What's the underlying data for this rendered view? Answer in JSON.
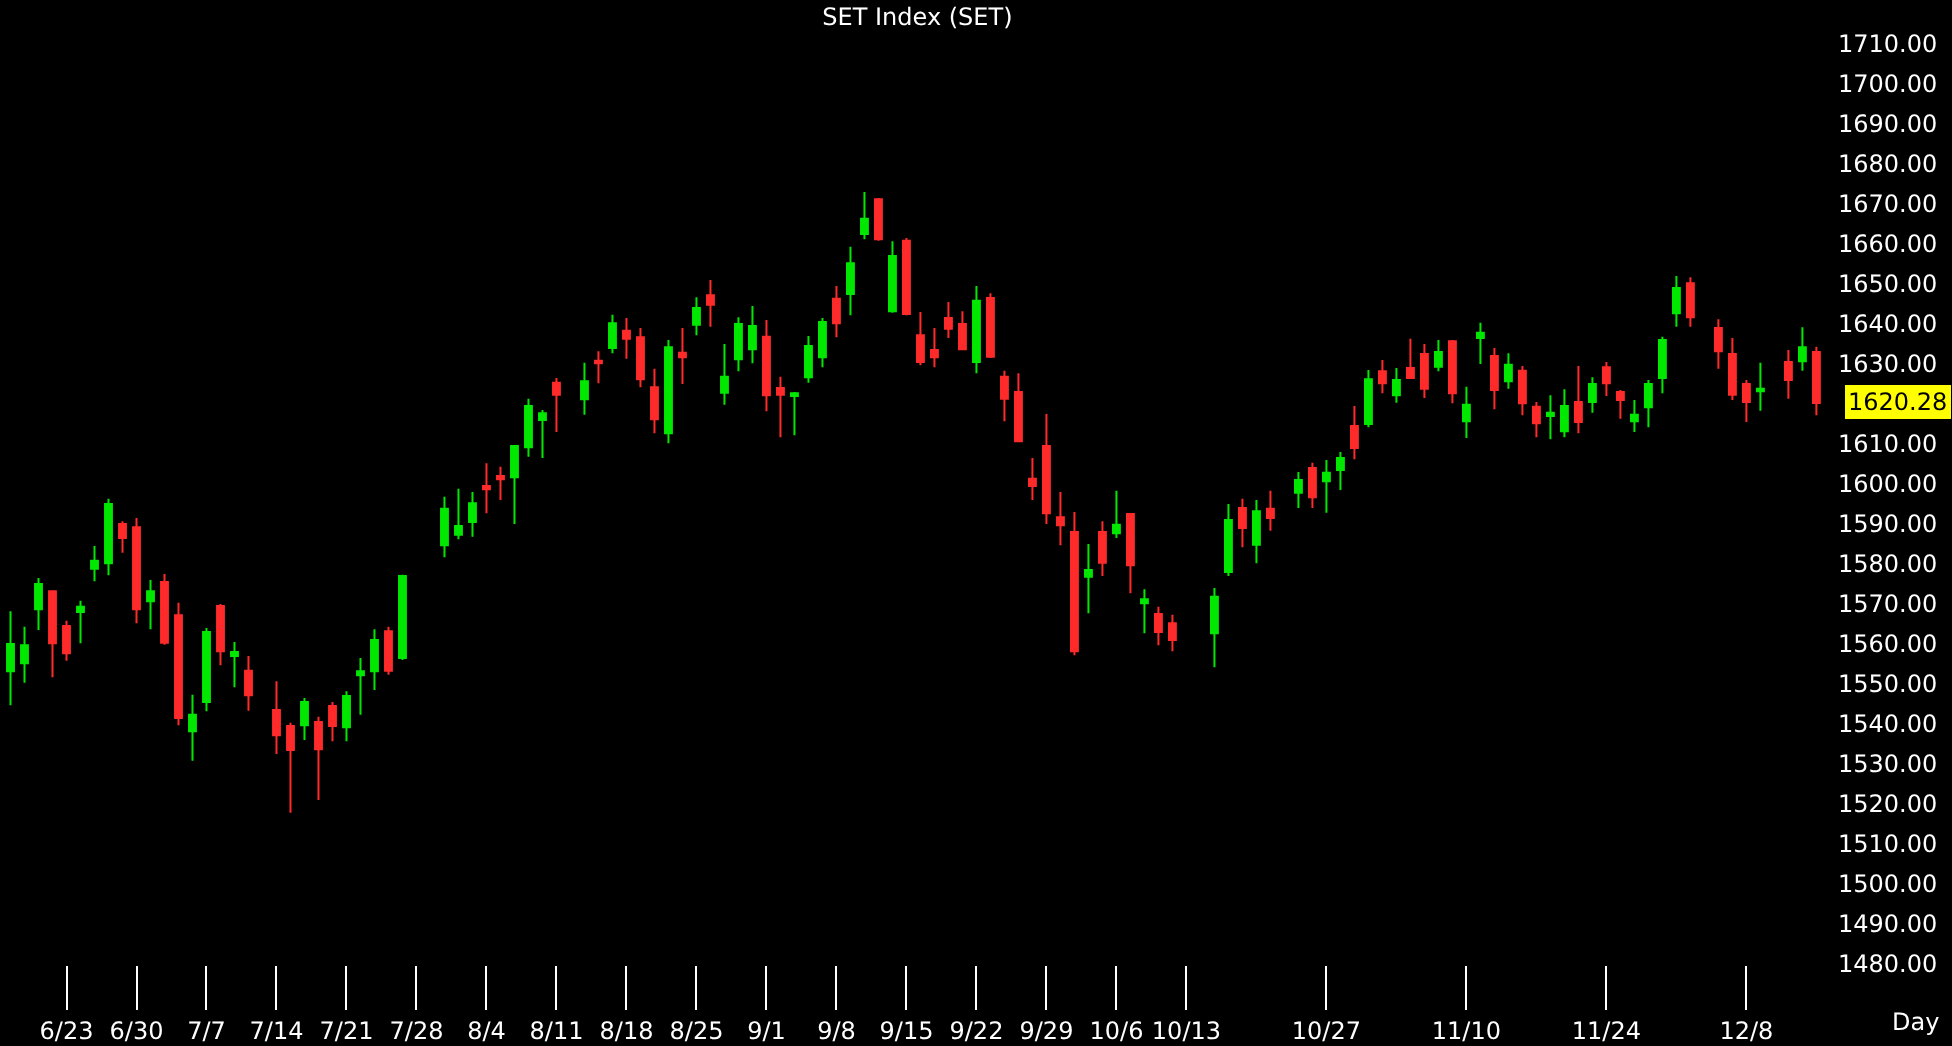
{
  "chart_data": {
    "type": "candlestick",
    "title": "SET Index (SET)",
    "xlabel": "Day",
    "categories": [
      null,
      null,
      null,
      null,
      "6/23",
      null,
      null,
      null,
      null,
      "6/30",
      null,
      null,
      null,
      null,
      "7/7",
      null,
      null,
      null,
      null,
      "7/14",
      null,
      null,
      null,
      null,
      "7/21",
      null,
      null,
      null,
      null,
      "7/28",
      null,
      null,
      null,
      null,
      "8/4",
      null,
      null,
      null,
      null,
      "8/11",
      null,
      null,
      null,
      null,
      "8/18",
      null,
      null,
      null,
      null,
      "8/25",
      null,
      null,
      null,
      null,
      "9/1",
      null,
      null,
      null,
      null,
      "9/8",
      null,
      null,
      null,
      null,
      "9/15",
      null,
      null,
      null,
      null,
      "9/22",
      null,
      null,
      null,
      null,
      "9/29",
      null,
      null,
      null,
      null,
      "10/6",
      null,
      null,
      null,
      null,
      "10/13",
      null,
      null,
      null,
      null,
      null,
      null,
      null,
      null,
      null,
      "10/27",
      null,
      null,
      null,
      null,
      null,
      null,
      null,
      null,
      null,
      "11/10",
      null,
      null,
      null,
      null,
      null,
      null,
      null,
      null,
      null,
      "11/24",
      null,
      null,
      null,
      null,
      null,
      null,
      null,
      null,
      null,
      "12/8",
      null,
      null,
      null,
      null,
      null
    ],
    "ohlc": [
      [
        1553.2,
        1568.2,
        1544.7,
        1560
      ],
      [
        1555.2,
        1564.3,
        1550.3,
        1559.7
      ],
      [
        1568.7,
        1576.5,
        1563.5,
        1575
      ],
      [
        1573.2,
        1573.2,
        1551.7,
        1560.2
      ],
      [
        1564.5,
        1565.8,
        1555.8,
        1557.7
      ],
      [
        1568,
        1570.8,
        1560.2,
        1569.3
      ],
      [
        1578.8,
        1584.5,
        1575.7,
        1580.8
      ],
      [
        1580.2,
        1596.3,
        1577.2,
        1595
      ],
      [
        1590,
        1590.7,
        1582.8,
        1586.5
      ],
      [
        1589.2,
        1591.5,
        1565.2,
        1568.7
      ],
      [
        1570.7,
        1576,
        1563.7,
        1573.2
      ],
      [
        1575.5,
        1577.5,
        1559.8,
        1560.3
      ],
      [
        1567.2,
        1570.3,
        1539.7,
        1541.5
      ],
      [
        1538.2,
        1547.3,
        1530.8,
        1542.3
      ],
      [
        1545.5,
        1564,
        1543.2,
        1563
      ],
      [
        1569.5,
        1570,
        1554.7,
        1558.2
      ],
      [
        1557,
        1560.5,
        1549.2,
        1558
      ],
      [
        1553.3,
        1557,
        1543.3,
        1547.2
      ],
      null,
      [
        1543.5,
        1550.7,
        1532.5,
        1537.2
      ],
      [
        1539.5,
        1540.3,
        1517.8,
        1533.5
      ],
      [
        1539.7,
        1546.5,
        1536,
        1545.5
      ],
      [
        1540.5,
        1541.8,
        1521,
        1533.7
      ],
      [
        1544.5,
        1545.5,
        1535.7,
        1539.5
      ],
      [
        1539.2,
        1548.2,
        1535.7,
        1547
      ],
      [
        1552.2,
        1556.5,
        1542.3,
        1553.2
      ],
      [
        1553.2,
        1563.7,
        1548.5,
        1561
      ],
      [
        1563.2,
        1564.3,
        1552.3,
        1553.3
      ],
      [
        1556.5,
        1577.3,
        1556,
        1577
      ],
      null,
      null,
      [
        1584.7,
        1596.8,
        1581.7,
        1593.8
      ],
      [
        1587.3,
        1598.8,
        1586.2,
        1589.5
      ],
      [
        1590.5,
        1598,
        1586.8,
        1595.2
      ],
      [
        1599.5,
        1605.2,
        1592.7,
        1598.7
      ],
      [
        1602,
        1604.3,
        1596,
        1601.2
      ],
      [
        1601.7,
        1609.5,
        1590,
        1609.5
      ],
      [
        1609.2,
        1621.3,
        1606.8,
        1619.5
      ],
      [
        1616,
        1618.5,
        1606.5,
        1617.7
      ],
      [
        1625.3,
        1626.5,
        1613,
        1622.3
      ],
      null,
      [
        1621.2,
        1630.3,
        1617.3,
        1625.7
      ],
      [
        1630.8,
        1633.2,
        1625.2,
        1630.2
      ],
      [
        1634,
        1642.3,
        1632.7,
        1640.2
      ],
      [
        1638.3,
        1641.5,
        1631.3,
        1636.3
      ],
      [
        1636.7,
        1639,
        1624.2,
        1626.2
      ],
      [
        1624.2,
        1628.8,
        1612.7,
        1616.2
      ],
      [
        1612.7,
        1636,
        1610.2,
        1634.2
      ],
      [
        1632.8,
        1639,
        1625,
        1631.7
      ],
      [
        1639.8,
        1646.7,
        1637.2,
        1644
      ],
      [
        1647.2,
        1651,
        1639.3,
        1644.8
      ],
      [
        1622.8,
        1635,
        1619.8,
        1626.8
      ],
      [
        1631.2,
        1641.7,
        1628.2,
        1640
      ],
      [
        1633.7,
        1644.5,
        1630.2,
        1639.5
      ],
      [
        1636.8,
        1641,
        1618.2,
        1622.2
      ],
      [
        1624,
        1626.8,
        1611.7,
        1622.3
      ],
      [
        1622,
        1623,
        1612.2,
        1622.7
      ],
      [
        1626.7,
        1637,
        1625.3,
        1634.5
      ],
      [
        1631.7,
        1641.5,
        1629.2,
        1640.5
      ],
      [
        1646.3,
        1649.5,
        1636.7,
        1640.2
      ],
      [
        1647.5,
        1659.3,
        1642.2,
        1655.2
      ],
      [
        1662.5,
        1673,
        1661.2,
        1666.3
      ],
      [
        1671.2,
        1671.5,
        1660.8,
        1661.2
      ],
      [
        1643.2,
        1660.7,
        1642.8,
        1657
      ],
      [
        1660.8,
        1661.5,
        1642.2,
        1642.5
      ],
      [
        1637.2,
        1643,
        1629.7,
        1630.5
      ],
      [
        1633.5,
        1639,
        1629.2,
        1631.7
      ],
      [
        1641.5,
        1645.5,
        1636.5,
        1638.8
      ],
      [
        1640,
        1643.2,
        1633.7,
        1633.7
      ],
      [
        1630.5,
        1649.5,
        1627.7,
        1645.8
      ],
      [
        1646.5,
        1647.7,
        1631.5,
        1631.8
      ],
      [
        1626.8,
        1628.3,
        1615.7,
        1621.3
      ],
      [
        1623,
        1627.7,
        1610.7,
        1610.7
      ],
      [
        1601.3,
        1606.5,
        1596,
        1599.5
      ],
      [
        1609.5,
        1617.5,
        1590,
        1592.7
      ],
      [
        1591.7,
        1598,
        1584.7,
        1589.7
      ],
      [
        1588,
        1593,
        1557.2,
        1558.2
      ],
      [
        1576.8,
        1585,
        1567.7,
        1578.5
      ],
      [
        1588,
        1590.7,
        1577,
        1580.3
      ],
      [
        1587.7,
        1598.3,
        1586.5,
        1589.8
      ],
      [
        1592.5,
        1592.5,
        1572.7,
        1579.7
      ],
      [
        1570.2,
        1573.7,
        1562.7,
        1571.2
      ],
      [
        1567.5,
        1569.3,
        1559.7,
        1563
      ],
      [
        1565.2,
        1567.3,
        1558.2,
        1561
      ],
      null,
      null,
      [
        1562.7,
        1574,
        1554.2,
        1571.8
      ],
      [
        1578,
        1595,
        1577,
        1591
      ],
      [
        1594,
        1596.3,
        1584.2,
        1589
      ],
      [
        1584.8,
        1596,
        1580.2,
        1593.2
      ],
      [
        1593.8,
        1598.3,
        1588.3,
        1591.5
      ],
      null,
      [
        1597.8,
        1603,
        1594,
        1601
      ],
      [
        1604,
        1605.3,
        1594,
        1596.7
      ],
      [
        1600.7,
        1606,
        1592.8,
        1602.8
      ],
      [
        1603.5,
        1608,
        1598.5,
        1606.5
      ],
      [
        1614.5,
        1619.5,
        1606.2,
        1609
      ],
      [
        1615,
        1628.5,
        1614.2,
        1626.2
      ],
      [
        1628.2,
        1631,
        1622.7,
        1625.2
      ],
      [
        1622.2,
        1629,
        1620.3,
        1626
      ],
      [
        1629,
        1636.3,
        1626.5,
        1626.5
      ],
      [
        1632.5,
        1635,
        1621.5,
        1623.8
      ],
      [
        1629.3,
        1636,
        1628.2,
        1633
      ],
      [
        1635.7,
        1636,
        1620.2,
        1622.7
      ],
      [
        1615.7,
        1624.3,
        1611.5,
        1619.8
      ],
      [
        1636.5,
        1640.3,
        1630,
        1637.8
      ],
      [
        1632,
        1634,
        1618.7,
        1623.5
      ],
      [
        1625.7,
        1632.7,
        1623.8,
        1629.8
      ],
      [
        1628.3,
        1629.5,
        1617.2,
        1620.2
      ],
      [
        1619.3,
        1620.5,
        1611.7,
        1615.2
      ],
      [
        1617,
        1622.2,
        1611.2,
        1617.8
      ],
      [
        1613.2,
        1623.7,
        1611.7,
        1619.5
      ],
      [
        1620.5,
        1629.5,
        1612.7,
        1615.5
      ],
      [
        1620.5,
        1626.7,
        1617.8,
        1625
      ],
      [
        1629.2,
        1630.5,
        1622,
        1625.2
      ],
      [
        1623,
        1623.5,
        1616.3,
        1621
      ],
      [
        1615.7,
        1621,
        1613,
        1617.3
      ],
      [
        1619.2,
        1626,
        1614.2,
        1625
      ],
      [
        1626.5,
        1636.8,
        1622.7,
        1636
      ],
      [
        1642.7,
        1652,
        1639.3,
        1649
      ],
      [
        1650.2,
        1651.7,
        1639.3,
        1641.7
      ],
      null,
      [
        1639,
        1641.2,
        1628.8,
        1633.2
      ],
      [
        1632.5,
        1636.5,
        1621,
        1622.3
      ],
      [
        1625,
        1626,
        1615.5,
        1620.5
      ],
      [
        1623.2,
        1630.3,
        1618.3,
        1623.8
      ],
      null,
      [
        1630.5,
        1633.5,
        1621.3,
        1626
      ],
      [
        1630.7,
        1639.2,
        1628.3,
        1634.2
      ],
      [
        1633,
        1634.3,
        1617.2,
        1620.28
      ]
    ],
    "ylim": [
      1480,
      1710
    ],
    "yticks": [
      {
        "value": 1480,
        "label": "1480.00"
      },
      {
        "value": 1490,
        "label": "1490.00"
      },
      {
        "value": 1500,
        "label": "1500.00"
      },
      {
        "value": 1510,
        "label": "1510.00"
      },
      {
        "value": 1520,
        "label": "1520.00"
      },
      {
        "value": 1530,
        "label": "1530.00"
      },
      {
        "value": 1540,
        "label": "1540.00"
      },
      {
        "value": 1550,
        "label": "1550.00"
      },
      {
        "value": 1560,
        "label": "1560.00"
      },
      {
        "value": 1570,
        "label": "1570.00"
      },
      {
        "value": 1580,
        "label": "1580.00"
      },
      {
        "value": 1590,
        "label": "1590.00"
      },
      {
        "value": 1600,
        "label": "1600.00"
      },
      {
        "value": 1610,
        "label": "1610.00"
      },
      {
        "value": 1630,
        "label": "1630.00"
      },
      {
        "value": 1640,
        "label": "1640.00"
      },
      {
        "value": 1650,
        "label": "1650.00"
      },
      {
        "value": 1660,
        "label": "1660.00"
      },
      {
        "value": 1670,
        "label": "1670.00"
      },
      {
        "value": 1680,
        "label": "1680.00"
      },
      {
        "value": 1690,
        "label": "1690.00"
      },
      {
        "value": 1700,
        "label": "1700.00"
      },
      {
        "value": 1710,
        "label": "1710.00"
      }
    ],
    "annotations": [
      "1620.28"
    ]
  }
}
